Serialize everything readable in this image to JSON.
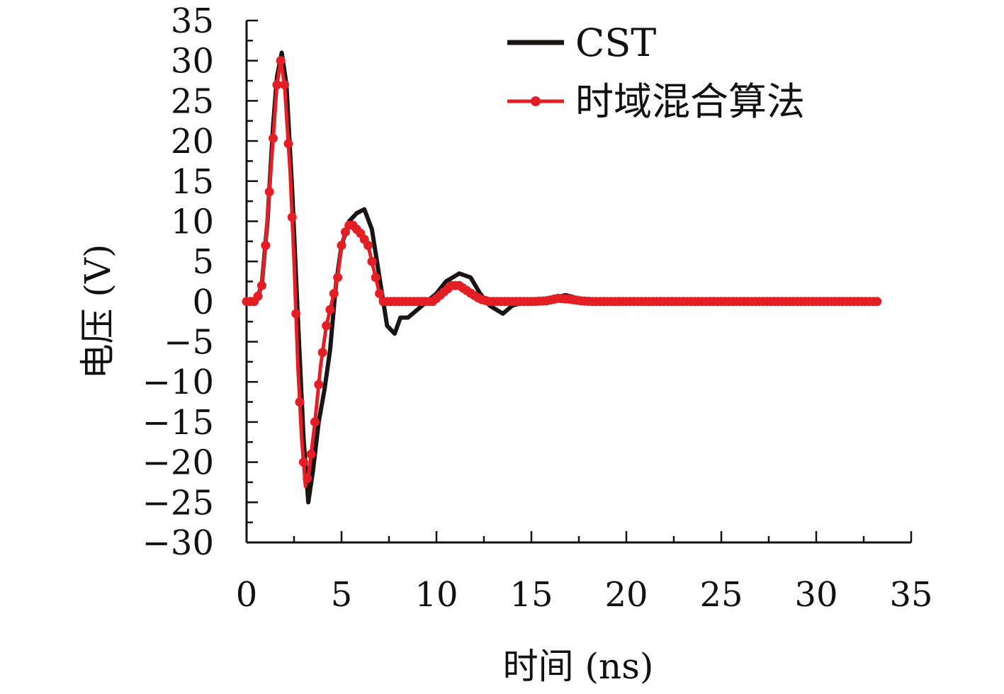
{
  "chart_data": {
    "type": "line",
    "xlabel": "时间 (ns)",
    "ylabel": "电压 (V)",
    "xlim": [
      0,
      35
    ],
    "ylim": [
      -30,
      35
    ],
    "xticks": [
      0,
      5,
      10,
      15,
      20,
      25,
      30,
      35
    ],
    "xtick_labels": [
      "0",
      "5",
      "10",
      "15",
      "20",
      "25",
      "30",
      "35"
    ],
    "yticks": [
      -30,
      -25,
      -20,
      -15,
      -10,
      -5,
      0,
      5,
      10,
      15,
      20,
      25,
      30,
      35
    ],
    "ytick_labels": [
      "−30",
      "−25",
      "−20",
      "−15",
      "−10",
      "−5",
      "0",
      "5",
      "10",
      "15",
      "20",
      "25",
      "30",
      "35"
    ],
    "grid": false,
    "legend_position": "top-right",
    "series": [
      {
        "name": "CST",
        "color": "#1a1414",
        "marker": "none",
        "points": [
          [
            0,
            0
          ],
          [
            0.5,
            0.1
          ],
          [
            0.8,
            2
          ],
          [
            1.1,
            10
          ],
          [
            1.4,
            22
          ],
          [
            1.6,
            28
          ],
          [
            1.85,
            31
          ],
          [
            2.1,
            27
          ],
          [
            2.4,
            14
          ],
          [
            2.7,
            -2
          ],
          [
            3.0,
            -17
          ],
          [
            3.25,
            -25
          ],
          [
            3.5,
            -21
          ],
          [
            3.8,
            -15
          ],
          [
            4.1,
            -11
          ],
          [
            4.4,
            -6
          ],
          [
            4.7,
            2
          ],
          [
            5.0,
            7
          ],
          [
            5.4,
            10
          ],
          [
            5.8,
            11
          ],
          [
            6.2,
            11.5
          ],
          [
            6.6,
            9
          ],
          [
            7.0,
            3
          ],
          [
            7.4,
            -3
          ],
          [
            7.8,
            -4
          ],
          [
            8.1,
            -2
          ],
          [
            8.5,
            -2
          ],
          [
            9.0,
            -1
          ],
          [
            9.5,
            0
          ],
          [
            10.0,
            1
          ],
          [
            10.5,
            2.5
          ],
          [
            11.2,
            3.5
          ],
          [
            11.8,
            3
          ],
          [
            12.3,
            1
          ],
          [
            12.8,
            -0.5
          ],
          [
            13.5,
            -1.5
          ],
          [
            14.0,
            -0.5
          ],
          [
            14.8,
            0
          ],
          [
            15.5,
            0.2
          ],
          [
            16.2,
            0.5
          ],
          [
            16.8,
            0.8
          ],
          [
            17.3,
            0.5
          ],
          [
            18.0,
            0
          ],
          [
            20,
            0
          ],
          [
            25,
            0
          ],
          [
            30,
            0
          ],
          [
            33.3,
            0
          ]
        ]
      },
      {
        "name": "时域混合算法",
        "color": "#e31e24",
        "marker": "circle",
        "points": [
          [
            0,
            0
          ],
          [
            0.5,
            0
          ],
          [
            0.8,
            2
          ],
          [
            1.0,
            7
          ],
          [
            1.3,
            17
          ],
          [
            1.6,
            27
          ],
          [
            1.8,
            30
          ],
          [
            2.0,
            27
          ],
          [
            2.3,
            16
          ],
          [
            2.5,
            5
          ],
          [
            2.7,
            -8
          ],
          [
            2.9,
            -17
          ],
          [
            3.1,
            -23
          ],
          [
            3.3,
            -21
          ],
          [
            3.6,
            -15
          ],
          [
            3.9,
            -8
          ],
          [
            4.2,
            -3
          ],
          [
            4.5,
            0
          ],
          [
            4.8,
            3
          ],
          [
            5.0,
            7
          ],
          [
            5.3,
            9.5
          ],
          [
            5.6,
            9.5
          ],
          [
            6.0,
            8.5
          ],
          [
            6.4,
            7
          ],
          [
            6.8,
            3
          ],
          [
            7.1,
            0
          ],
          [
            7.5,
            0
          ],
          [
            8.0,
            0
          ],
          [
            9.0,
            0
          ],
          [
            9.8,
            0
          ],
          [
            10.3,
            1
          ],
          [
            10.8,
            2
          ],
          [
            11.2,
            2
          ],
          [
            11.7,
            1.2
          ],
          [
            12.3,
            0.3
          ],
          [
            12.8,
            0
          ],
          [
            14.0,
            0
          ],
          [
            15.0,
            0
          ],
          [
            15.8,
            0.1
          ],
          [
            16.4,
            0.4
          ],
          [
            17.0,
            0.3
          ],
          [
            17.6,
            0.1
          ],
          [
            18.2,
            0
          ],
          [
            20,
            0
          ],
          [
            25,
            0
          ],
          [
            30,
            0
          ],
          [
            33.3,
            0
          ]
        ]
      }
    ]
  }
}
